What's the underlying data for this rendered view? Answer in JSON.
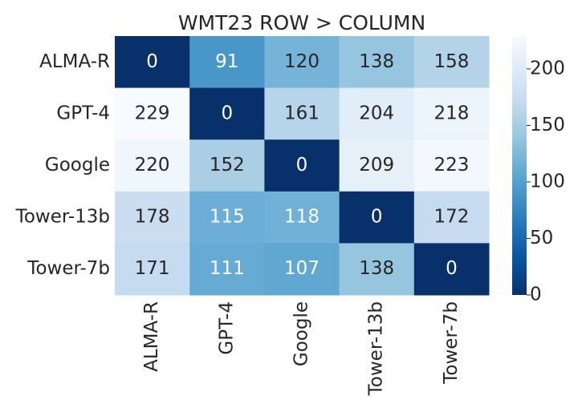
{
  "chart_data": {
    "type": "heatmap",
    "title": "WMT23 ROW > COLUMN",
    "x_categories": [
      "ALMA-R",
      "GPT-4",
      "Google",
      "Tower-13b",
      "Tower-7b"
    ],
    "y_categories": [
      "ALMA-R",
      "GPT-4",
      "Google",
      "Tower-13b",
      "Tower-7b"
    ],
    "values": [
      [
        0,
        91,
        120,
        138,
        158
      ],
      [
        229,
        0,
        161,
        204,
        218
      ],
      [
        220,
        152,
        0,
        209,
        223
      ],
      [
        178,
        115,
        118,
        0,
        172
      ],
      [
        171,
        111,
        107,
        138,
        0
      ]
    ],
    "colormap": [
      "#08306b",
      "#08519c",
      "#2171b5",
      "#4292c6",
      "#6baed6",
      "#9ecae1",
      "#c6dbef",
      "#deebf7",
      "#f7fbff"
    ],
    "clim": [
      0,
      229
    ],
    "colorbar_ticks": [
      0,
      50,
      100,
      150,
      200
    ]
  }
}
